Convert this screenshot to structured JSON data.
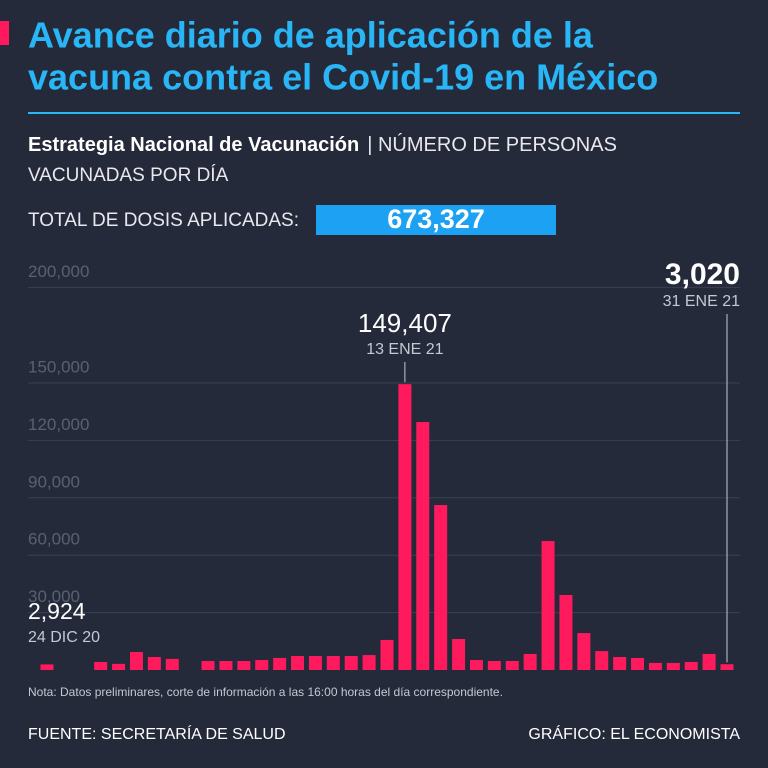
{
  "chart_data": {
    "type": "bar",
    "title": [
      "Avance diario de aplicación de la",
      "vacuna contra el Covid-19 en México"
    ],
    "subtitle": "Estrategia Nacional de Vacunación",
    "description": [
      "| NÚMERO DE PERSONAS",
      "VACUNADAS POR DÍA"
    ],
    "total_label": "TOTAL DE DOSIS APLICADAS:",
    "total_value": {
      "value": 673327,
      "label": "673,327"
    },
    "categories": [
      "24 DIC 20",
      null,
      null,
      null,
      null,
      null,
      null,
      null,
      null,
      null,
      null,
      null,
      null,
      null,
      null,
      null,
      null,
      null,
      null,
      null,
      "13 ENE 21",
      null,
      null,
      null,
      null,
      null,
      null,
      null,
      null,
      null,
      null,
      null,
      null,
      null,
      null,
      null,
      null,
      null,
      "31 ENE 21"
    ],
    "values": [
      2924,
      0,
      0,
      4200,
      3200,
      9400,
      6800,
      5800,
      0,
      4700,
      4700,
      4700,
      5200,
      6300,
      7300,
      7300,
      7300,
      7300,
      7800,
      15700,
      149407,
      129600,
      86200,
      16200,
      5200,
      4700,
      4700,
      8400,
      67400,
      39200,
      19300,
      9900,
      6800,
      6300,
      3700,
      3700,
      4200,
      8400,
      3020
    ],
    "value_labels": [
      "2,924",
      null,
      null,
      null,
      null,
      null,
      null,
      null,
      null,
      null,
      null,
      null,
      null,
      null,
      null,
      null,
      null,
      null,
      null,
      null,
      "149,407",
      null,
      null,
      null,
      null,
      null,
      null,
      null,
      null,
      null,
      null,
      null,
      null,
      null,
      null,
      null,
      null,
      null,
      "3,020"
    ],
    "color": "#ff1a5e",
    "ylim": [
      0,
      200000
    ],
    "yticks": [
      {
        "value": 30000,
        "label": "30,000"
      },
      {
        "value": 60000,
        "label": "60,000"
      },
      {
        "value": 90000,
        "label": "90,000"
      },
      {
        "value": 120000,
        "label": "120,000"
      },
      {
        "value": 150000,
        "label": "150,000"
      },
      {
        "value": 200000,
        "label": "200,000"
      }
    ],
    "grid": true,
    "note": "Nota: Datos preliminares, corte de información a las 16:00 horas del día correspondiente.",
    "source": "FUENTE: SECRETARÍA DE SALUD",
    "credit": "GRÁFICO: EL ECONOMISTA"
  }
}
